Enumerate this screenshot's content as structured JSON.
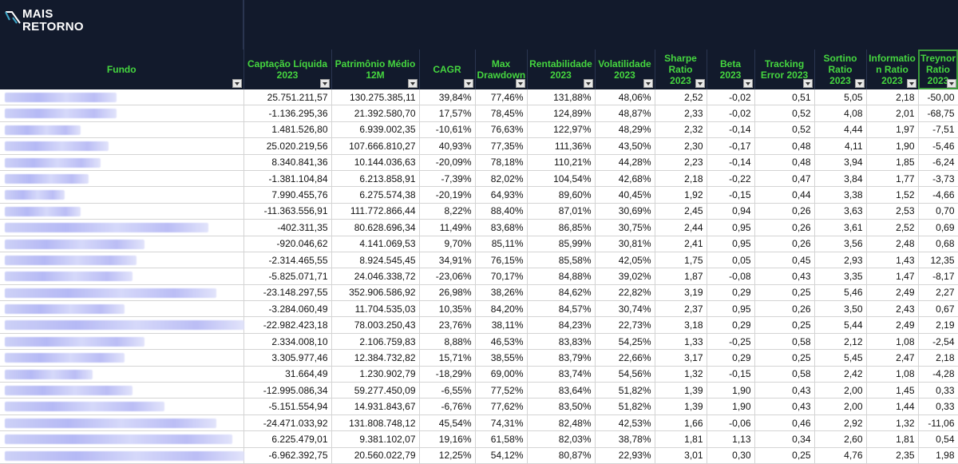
{
  "brand": {
    "line1": "MAIS",
    "line2": "RETORNO"
  },
  "headers": [
    "Fundo",
    "Captação Líquida 2023",
    "Patrimônio Médio 12M",
    "CAGR",
    "Max Drawdown",
    "Rentabilidade 2023",
    "Volatilidade 2023",
    "Sharpe Ratio 2023",
    "Beta 2023",
    "Tracking Error 2023",
    "Sortino Ratio 2023",
    "Informatio n Ratio 2023",
    "Treynor Ratio 2023"
  ],
  "rows": [
    [
      "25.751.211,57",
      "130.275.385,11",
      "39,84%",
      "77,46%",
      "131,88%",
      "48,06%",
      "2,52",
      "-0,02",
      "0,51",
      "5,05",
      "2,18",
      "-50,00"
    ],
    [
      "-1.136.295,36",
      "21.392.580,70",
      "17,57%",
      "78,45%",
      "124,89%",
      "48,87%",
      "2,33",
      "-0,02",
      "0,52",
      "4,08",
      "2,01",
      "-68,75"
    ],
    [
      "1.481.526,80",
      "6.939.002,35",
      "-10,61%",
      "76,63%",
      "122,97%",
      "48,29%",
      "2,32",
      "-0,14",
      "0,52",
      "4,44",
      "1,97",
      "-7,51"
    ],
    [
      "25.020.219,56",
      "107.666.810,27",
      "40,93%",
      "77,35%",
      "111,36%",
      "43,50%",
      "2,30",
      "-0,17",
      "0,48",
      "4,11",
      "1,90",
      "-5,46"
    ],
    [
      "8.340.841,36",
      "10.144.036,63",
      "-20,09%",
      "78,18%",
      "110,21%",
      "44,28%",
      "2,23",
      "-0,14",
      "0,48",
      "3,94",
      "1,85",
      "-6,24"
    ],
    [
      "-1.381.104,84",
      "6.213.858,91",
      "-7,39%",
      "82,02%",
      "104,54%",
      "42,68%",
      "2,18",
      "-0,22",
      "0,47",
      "3,84",
      "1,77",
      "-3,73"
    ],
    [
      "7.990.455,76",
      "6.275.574,38",
      "-20,19%",
      "64,93%",
      "89,60%",
      "40,45%",
      "1,92",
      "-0,15",
      "0,44",
      "3,38",
      "1,52",
      "-4,66"
    ],
    [
      "-11.363.556,91",
      "111.772.866,44",
      "8,22%",
      "88,40%",
      "87,01%",
      "30,69%",
      "2,45",
      "0,94",
      "0,26",
      "3,63",
      "2,53",
      "0,70"
    ],
    [
      "-402.311,35",
      "80.628.696,34",
      "11,49%",
      "83,68%",
      "86,85%",
      "30,75%",
      "2,44",
      "0,95",
      "0,26",
      "3,61",
      "2,52",
      "0,69"
    ],
    [
      "-920.046,62",
      "4.141.069,53",
      "9,70%",
      "85,11%",
      "85,99%",
      "30,81%",
      "2,41",
      "0,95",
      "0,26",
      "3,56",
      "2,48",
      "0,68"
    ],
    [
      "-2.314.465,55",
      "8.924.545,45",
      "34,91%",
      "76,15%",
      "85,58%",
      "42,05%",
      "1,75",
      "0,05",
      "0,45",
      "2,93",
      "1,43",
      "12,35"
    ],
    [
      "-5.825.071,71",
      "24.046.338,72",
      "-23,06%",
      "70,17%",
      "84,88%",
      "39,02%",
      "1,87",
      "-0,08",
      "0,43",
      "3,35",
      "1,47",
      "-8,17"
    ],
    [
      "-23.148.297,55",
      "352.906.586,92",
      "26,98%",
      "38,26%",
      "84,62%",
      "22,82%",
      "3,19",
      "0,29",
      "0,25",
      "5,46",
      "2,49",
      "2,27"
    ],
    [
      "-3.284.060,49",
      "11.704.535,03",
      "10,35%",
      "84,20%",
      "84,57%",
      "30,74%",
      "2,37",
      "0,95",
      "0,26",
      "3,50",
      "2,43",
      "0,67"
    ],
    [
      "-22.982.423,18",
      "78.003.250,43",
      "23,76%",
      "38,11%",
      "84,23%",
      "22,73%",
      "3,18",
      "0,29",
      "0,25",
      "5,44",
      "2,49",
      "2,19"
    ],
    [
      "2.334.008,10",
      "2.106.759,83",
      "8,88%",
      "46,53%",
      "83,83%",
      "54,25%",
      "1,33",
      "-0,25",
      "0,58",
      "2,12",
      "1,08",
      "-2,54"
    ],
    [
      "3.305.977,46",
      "12.384.732,82",
      "15,71%",
      "38,55%",
      "83,79%",
      "22,66%",
      "3,17",
      "0,29",
      "0,25",
      "5,45",
      "2,47",
      "2,18"
    ],
    [
      "31.664,49",
      "1.230.902,79",
      "-18,29%",
      "69,00%",
      "83,74%",
      "54,56%",
      "1,32",
      "-0,15",
      "0,58",
      "2,42",
      "1,08",
      "-4,28"
    ],
    [
      "-12.995.086,34",
      "59.277.450,09",
      "-6,55%",
      "77,52%",
      "83,64%",
      "51,82%",
      "1,39",
      "1,90",
      "0,43",
      "2,00",
      "1,45",
      "0,33"
    ],
    [
      "-5.151.554,94",
      "14.931.843,67",
      "-6,76%",
      "77,62%",
      "83,50%",
      "51,82%",
      "1,39",
      "1,90",
      "0,43",
      "2,00",
      "1,44",
      "0,33"
    ],
    [
      "-24.471.033,92",
      "131.808.748,12",
      "45,54%",
      "74,31%",
      "82,48%",
      "42,53%",
      "1,66",
      "-0,06",
      "0,46",
      "2,92",
      "1,32",
      "-11,06"
    ],
    [
      "6.225.479,01",
      "9.381.102,07",
      "19,16%",
      "61,58%",
      "82,03%",
      "38,78%",
      "1,81",
      "1,13",
      "0,34",
      "2,60",
      "1,81",
      "0,54"
    ],
    [
      "-6.962.392,75",
      "20.560.022,79",
      "12,25%",
      "54,12%",
      "80,87%",
      "22,93%",
      "3,01",
      "0,30",
      "0,25",
      "4,76",
      "2,35",
      "1,98"
    ]
  ],
  "colors": {
    "header_bg": "#121a2c",
    "header_text": "#45d63f",
    "negative": "#e0261f",
    "blur": "#b4b7f5"
  }
}
